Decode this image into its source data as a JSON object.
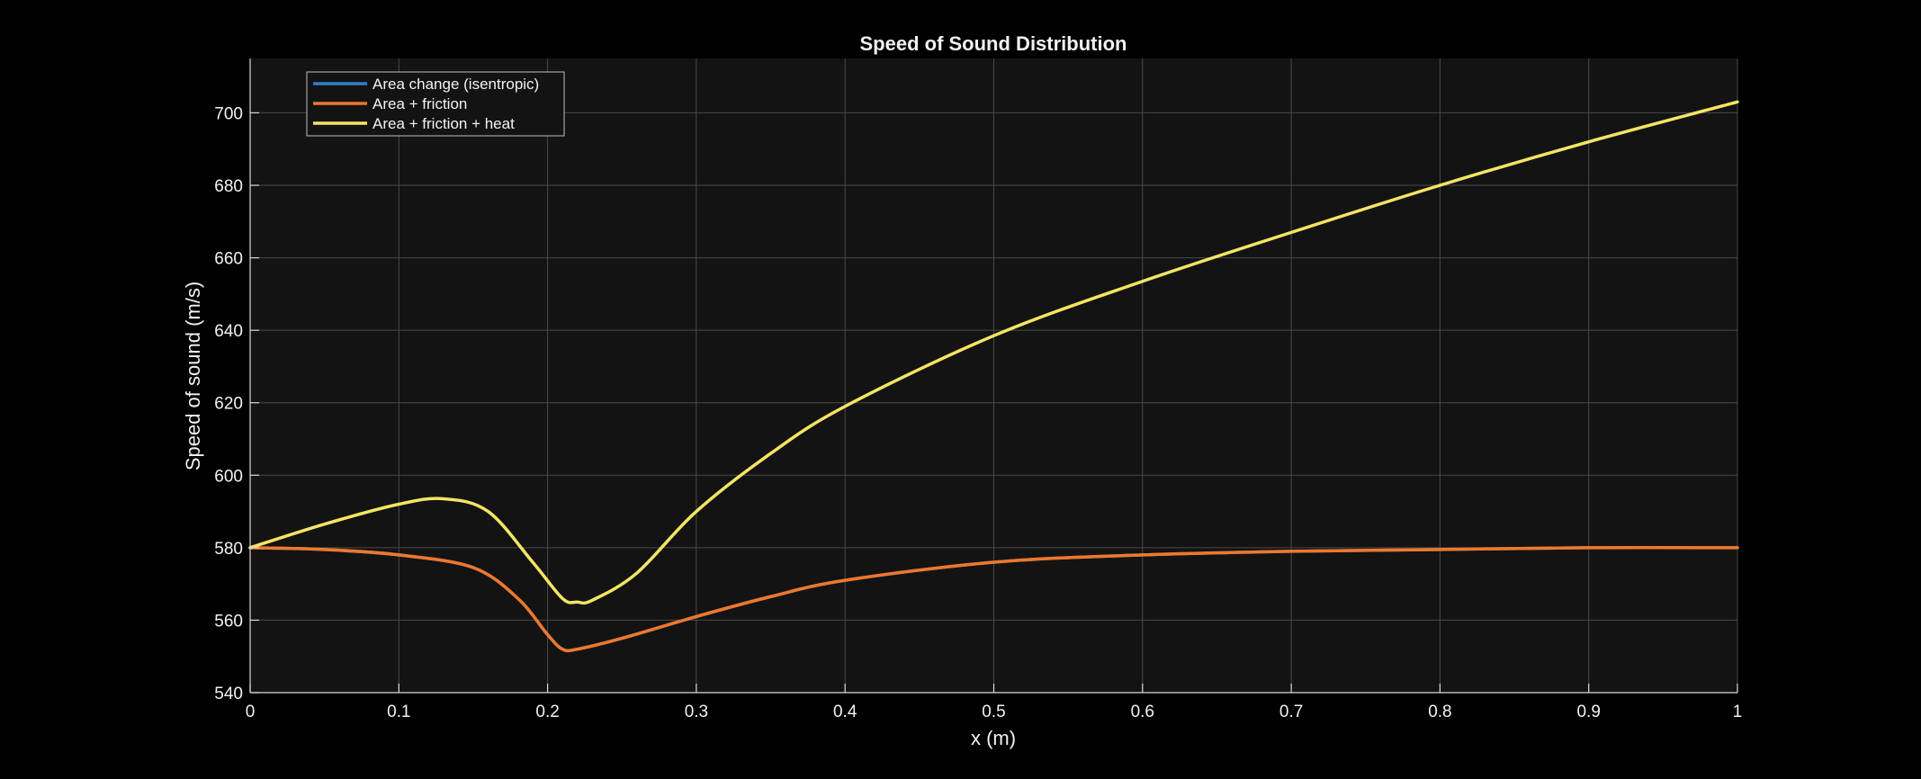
{
  "chart_data": {
    "type": "line",
    "title": "Speed of Sound Distribution",
    "xlabel": "x (m)",
    "ylabel": "Speed of sound (m/s)",
    "xlim": [
      0,
      1
    ],
    "ylim": [
      540,
      715
    ],
    "xticks": [
      0,
      0.1,
      0.2,
      0.3,
      0.4,
      0.5,
      0.6,
      0.7,
      0.8,
      0.9,
      1
    ],
    "xtick_labels": [
      "0",
      "0.1",
      "0.2",
      "0.3",
      "0.4",
      "0.5",
      "0.6",
      "0.7",
      "0.8",
      "0.9",
      "1"
    ],
    "yticks": [
      540,
      560,
      580,
      600,
      620,
      640,
      660,
      680,
      700
    ],
    "ytick_labels": [
      "540",
      "560",
      "580",
      "600",
      "620",
      "640",
      "660",
      "680",
      "700"
    ],
    "grid": true,
    "legend_position": "top-left",
    "colors": {
      "figure_background": "#000000",
      "axes_background": "#131313",
      "grid": "#4a4a4a",
      "axis": "#d9d9d9",
      "text": "#ffffff"
    },
    "series": [
      {
        "name": "Area change (isentropic)",
        "color": "#2f7fc9",
        "x": [
          0,
          0.05,
          0.1,
          0.15,
          0.18,
          0.2,
          0.21,
          0.22,
          0.25,
          0.3,
          0.35,
          0.4,
          0.5,
          0.6,
          0.7,
          0.8,
          0.9,
          1.0
        ],
        "y": [
          580,
          579.5,
          578,
          574.5,
          566,
          556,
          552,
          552,
          555,
          561,
          566.5,
          571,
          576,
          578,
          579,
          579.5,
          580,
          580
        ]
      },
      {
        "name": "Area + friction",
        "color": "#f0772b",
        "x": [
          0,
          0.05,
          0.1,
          0.15,
          0.18,
          0.2,
          0.21,
          0.22,
          0.25,
          0.3,
          0.35,
          0.4,
          0.5,
          0.6,
          0.7,
          0.8,
          0.9,
          1.0
        ],
        "y": [
          580,
          579.5,
          578,
          574.5,
          566,
          556,
          552,
          552,
          555,
          561,
          566.5,
          571,
          576,
          578,
          579,
          579.5,
          580,
          580
        ]
      },
      {
        "name": "Area + friction + heat",
        "color": "#f5e463",
        "x": [
          0,
          0.05,
          0.1,
          0.13,
          0.16,
          0.19,
          0.21,
          0.22,
          0.23,
          0.26,
          0.3,
          0.35,
          0.4,
          0.5,
          0.6,
          0.7,
          0.8,
          0.9,
          1.0
        ],
        "y": [
          580,
          586.5,
          592,
          593.5,
          590,
          576,
          566,
          565,
          565.5,
          573,
          590,
          606,
          619,
          638.5,
          653.5,
          667,
          680,
          692,
          703
        ]
      }
    ]
  }
}
